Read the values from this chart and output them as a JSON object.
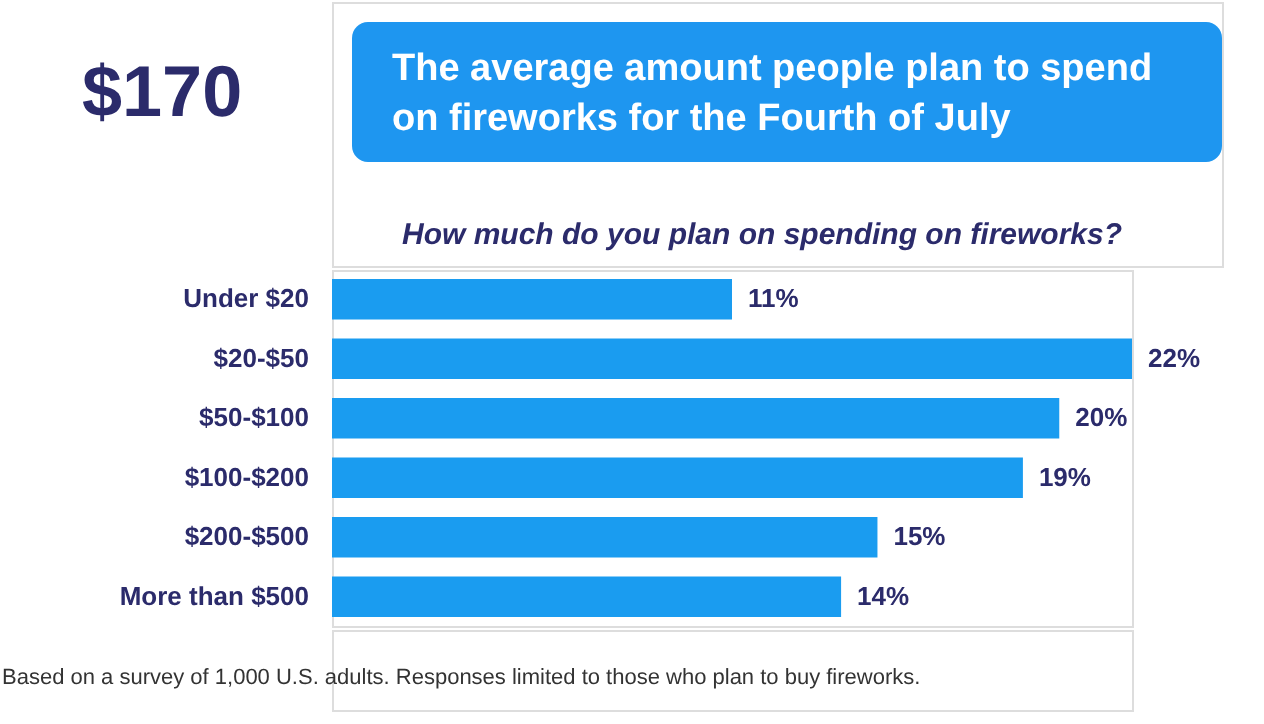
{
  "chart_data": {
    "type": "bar",
    "orientation": "horizontal",
    "title": "The average amount people plan to spend on fireworks for the Fourth of July",
    "subtitle": "How much do you plan on spending on fireworks?",
    "categories": [
      "Under $20",
      "$20-$50",
      "$50-$100",
      "$100-$200",
      "$200-$500",
      "More than $500"
    ],
    "values": [
      11,
      22,
      20,
      19,
      15,
      14
    ],
    "value_labels": [
      "11%",
      "22%",
      "20%",
      "19%",
      "15%",
      "14%"
    ],
    "color": "#1a9cf0",
    "annotations": [
      "$170",
      "Based on a survey of 1,000 U.S. adults. Responses limited to those who plan to buy fireworks."
    ]
  }
}
